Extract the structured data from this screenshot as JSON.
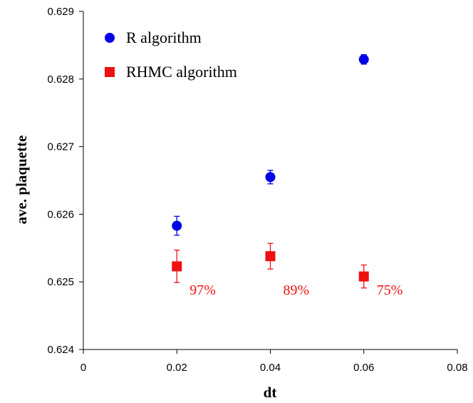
{
  "chart_data": {
    "type": "scatter",
    "xlabel": "dt",
    "ylabel": "ave. plaquette",
    "xlim": [
      0,
      0.08
    ],
    "ylim": [
      0.624,
      0.629
    ],
    "x_ticks": [
      "0",
      "0.02",
      "0.04",
      "0.06",
      "0.08"
    ],
    "y_ticks": [
      "0.624",
      "0.625",
      "0.626",
      "0.627",
      "0.628",
      "0.629"
    ],
    "grid": false,
    "legend_position": "top-left",
    "series": [
      {
        "name": "R algorithm",
        "marker": "circle",
        "color": "#0000e6",
        "points": [
          {
            "x": 0.02,
            "y": 0.62583,
            "err": 0.00014
          },
          {
            "x": 0.04,
            "y": 0.62655,
            "err": 0.0001
          },
          {
            "x": 0.06,
            "y": 0.62829,
            "err": 7e-05
          }
        ]
      },
      {
        "name": "RHMC algorithm",
        "marker": "square",
        "color": "#ee1111",
        "points": [
          {
            "x": 0.02,
            "y": 0.62523,
            "err": 0.00024
          },
          {
            "x": 0.04,
            "y": 0.62538,
            "err": 0.00019
          },
          {
            "x": 0.06,
            "y": 0.62508,
            "err": 0.00017
          }
        ]
      }
    ],
    "annotations": [
      {
        "text": "97%",
        "x": 0.02,
        "color": "#ee1111"
      },
      {
        "text": "89%",
        "x": 0.04,
        "color": "#ee1111"
      },
      {
        "text": "75%",
        "x": 0.06,
        "color": "#ee1111"
      }
    ]
  }
}
